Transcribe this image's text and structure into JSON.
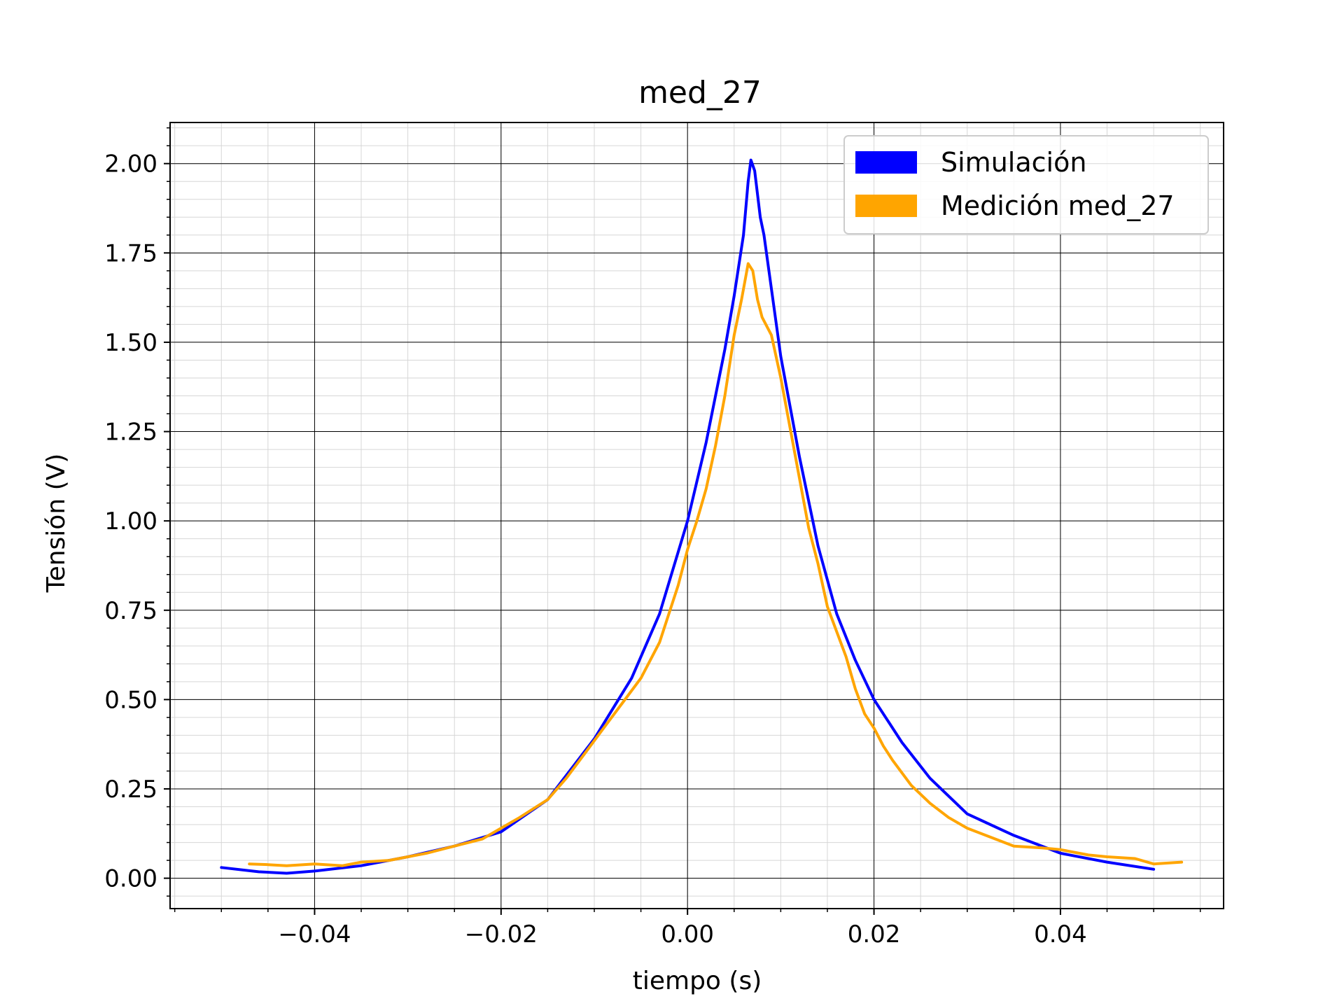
{
  "chart_data": {
    "type": "line",
    "title": "med_27",
    "xlabel": "tiempo (s)",
    "ylabel": "Tensión (V)",
    "xlim": [
      -0.0555,
      0.0575
    ],
    "ylim": [
      -0.085,
      2.115
    ],
    "xticks": [
      -0.04,
      -0.02,
      0.0,
      0.02,
      0.04
    ],
    "xtick_labels": [
      "−0.04",
      "−0.02",
      "0.00",
      "0.02",
      "0.04"
    ],
    "yticks": [
      0.0,
      0.25,
      0.5,
      0.75,
      1.0,
      1.25,
      1.5,
      1.75,
      2.0
    ],
    "ytick_labels": [
      "0.00",
      "0.25",
      "0.50",
      "0.75",
      "1.00",
      "1.25",
      "1.50",
      "1.75",
      "2.00"
    ],
    "grid": true,
    "legend_position": "top-right",
    "series": [
      {
        "name": "Simulación",
        "color": "#0000ff",
        "x": [
          -0.05,
          -0.046,
          -0.043,
          -0.04,
          -0.035,
          -0.03,
          -0.025,
          -0.02,
          -0.015,
          -0.01,
          -0.006,
          -0.003,
          0.0,
          0.002,
          0.004,
          0.005,
          0.006,
          0.0065,
          0.0068,
          0.0072,
          0.0078,
          0.0082,
          0.009,
          0.01,
          0.012,
          0.014,
          0.016,
          0.018,
          0.02,
          0.023,
          0.026,
          0.03,
          0.035,
          0.04,
          0.045,
          0.05
        ],
        "y": [
          0.03,
          0.018,
          0.014,
          0.02,
          0.035,
          0.06,
          0.09,
          0.13,
          0.22,
          0.39,
          0.56,
          0.74,
          1.0,
          1.22,
          1.48,
          1.63,
          1.8,
          1.95,
          2.01,
          1.98,
          1.85,
          1.8,
          1.65,
          1.46,
          1.18,
          0.93,
          0.74,
          0.61,
          0.5,
          0.38,
          0.28,
          0.18,
          0.12,
          0.07,
          0.045,
          0.025
        ]
      },
      {
        "name": "Medición med_27",
        "color": "#ffa500",
        "x": [
          -0.047,
          -0.045,
          -0.043,
          -0.04,
          -0.037,
          -0.035,
          -0.032,
          -0.03,
          -0.028,
          -0.025,
          -0.022,
          -0.02,
          -0.018,
          -0.015,
          -0.013,
          -0.011,
          -0.009,
          -0.007,
          -0.005,
          -0.003,
          -0.001,
          0.0,
          0.001,
          0.002,
          0.003,
          0.004,
          0.005,
          0.0058,
          0.0065,
          0.007,
          0.0075,
          0.008,
          0.009,
          0.01,
          0.011,
          0.012,
          0.013,
          0.014,
          0.015,
          0.016,
          0.017,
          0.018,
          0.019,
          0.02,
          0.021,
          0.022,
          0.024,
          0.026,
          0.028,
          0.03,
          0.033,
          0.035,
          0.038,
          0.04,
          0.043,
          0.045,
          0.048,
          0.05,
          0.053
        ],
        "y": [
          0.04,
          0.038,
          0.035,
          0.04,
          0.035,
          0.045,
          0.05,
          0.06,
          0.07,
          0.09,
          0.11,
          0.14,
          0.17,
          0.22,
          0.28,
          0.35,
          0.42,
          0.49,
          0.56,
          0.66,
          0.82,
          0.92,
          1.0,
          1.09,
          1.21,
          1.35,
          1.52,
          1.62,
          1.72,
          1.7,
          1.62,
          1.57,
          1.52,
          1.4,
          1.26,
          1.12,
          0.98,
          0.88,
          0.76,
          0.69,
          0.62,
          0.53,
          0.46,
          0.42,
          0.37,
          0.33,
          0.26,
          0.21,
          0.17,
          0.14,
          0.11,
          0.09,
          0.085,
          0.08,
          0.065,
          0.06,
          0.055,
          0.04,
          0.045
        ]
      }
    ]
  }
}
